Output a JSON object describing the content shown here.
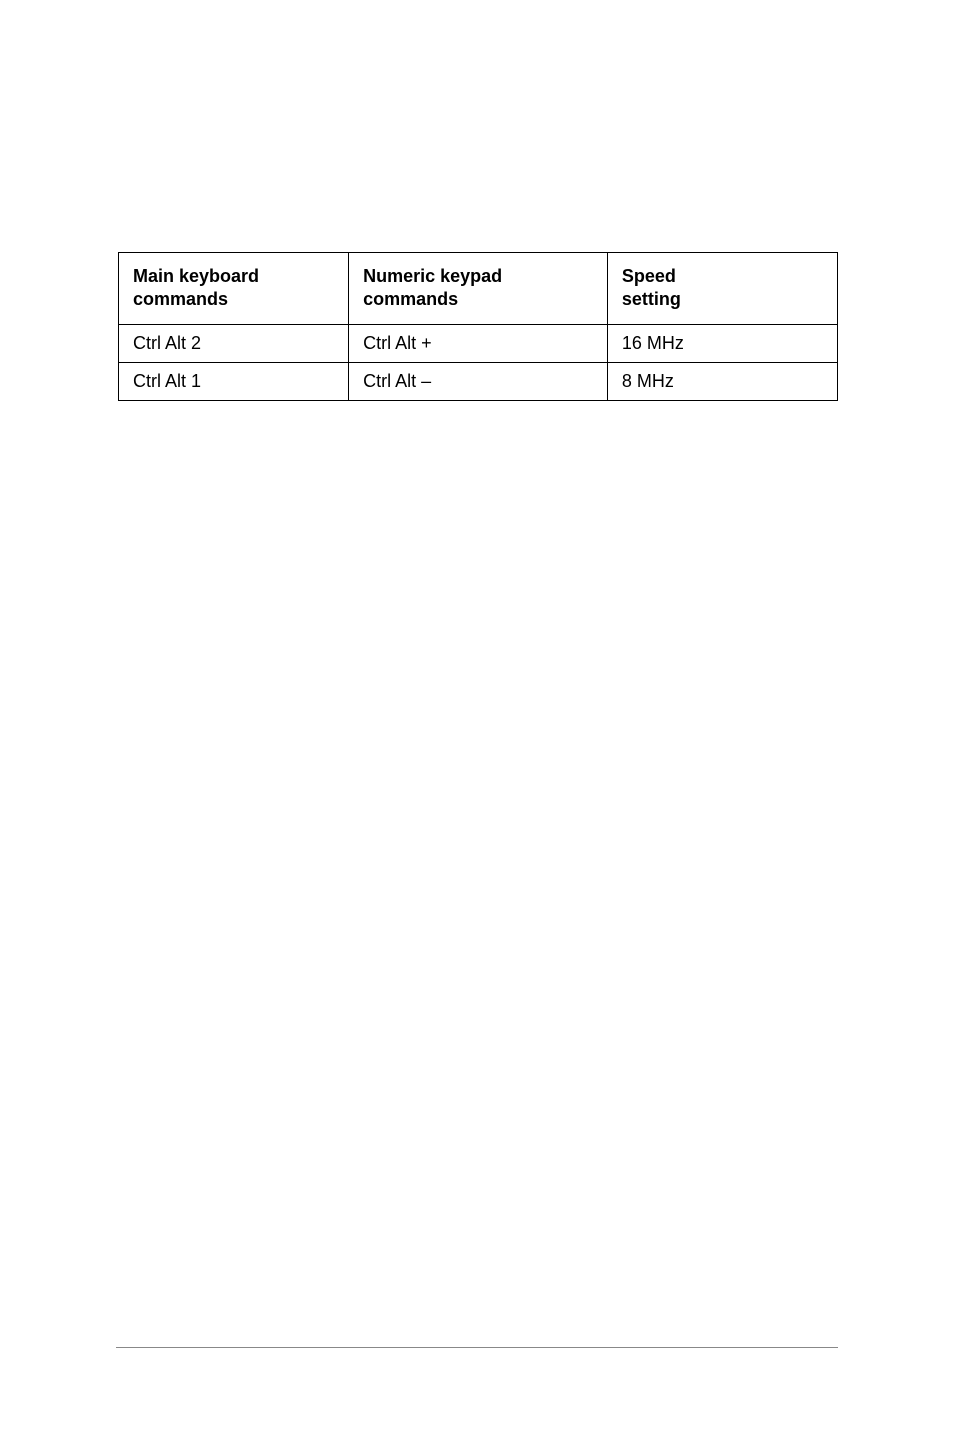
{
  "table": {
    "columns": [
      "Main keyboard\ncommands",
      "Numeric keypad\ncommands",
      "Speed\nsetting"
    ],
    "rows": [
      [
        "Ctrl Alt 2",
        "Ctrl Alt +",
        "16 MHz"
      ],
      [
        "Ctrl Alt 1",
        "Ctrl Alt –",
        "8 MHz"
      ]
    ],
    "border_color": "#000000",
    "background_color": "#ffffff",
    "header_font_weight": "bold",
    "font_size": 18,
    "col_widths": [
      "32%",
      "36%",
      "32%"
    ]
  },
  "footer": {
    "line_color": "#888888"
  }
}
